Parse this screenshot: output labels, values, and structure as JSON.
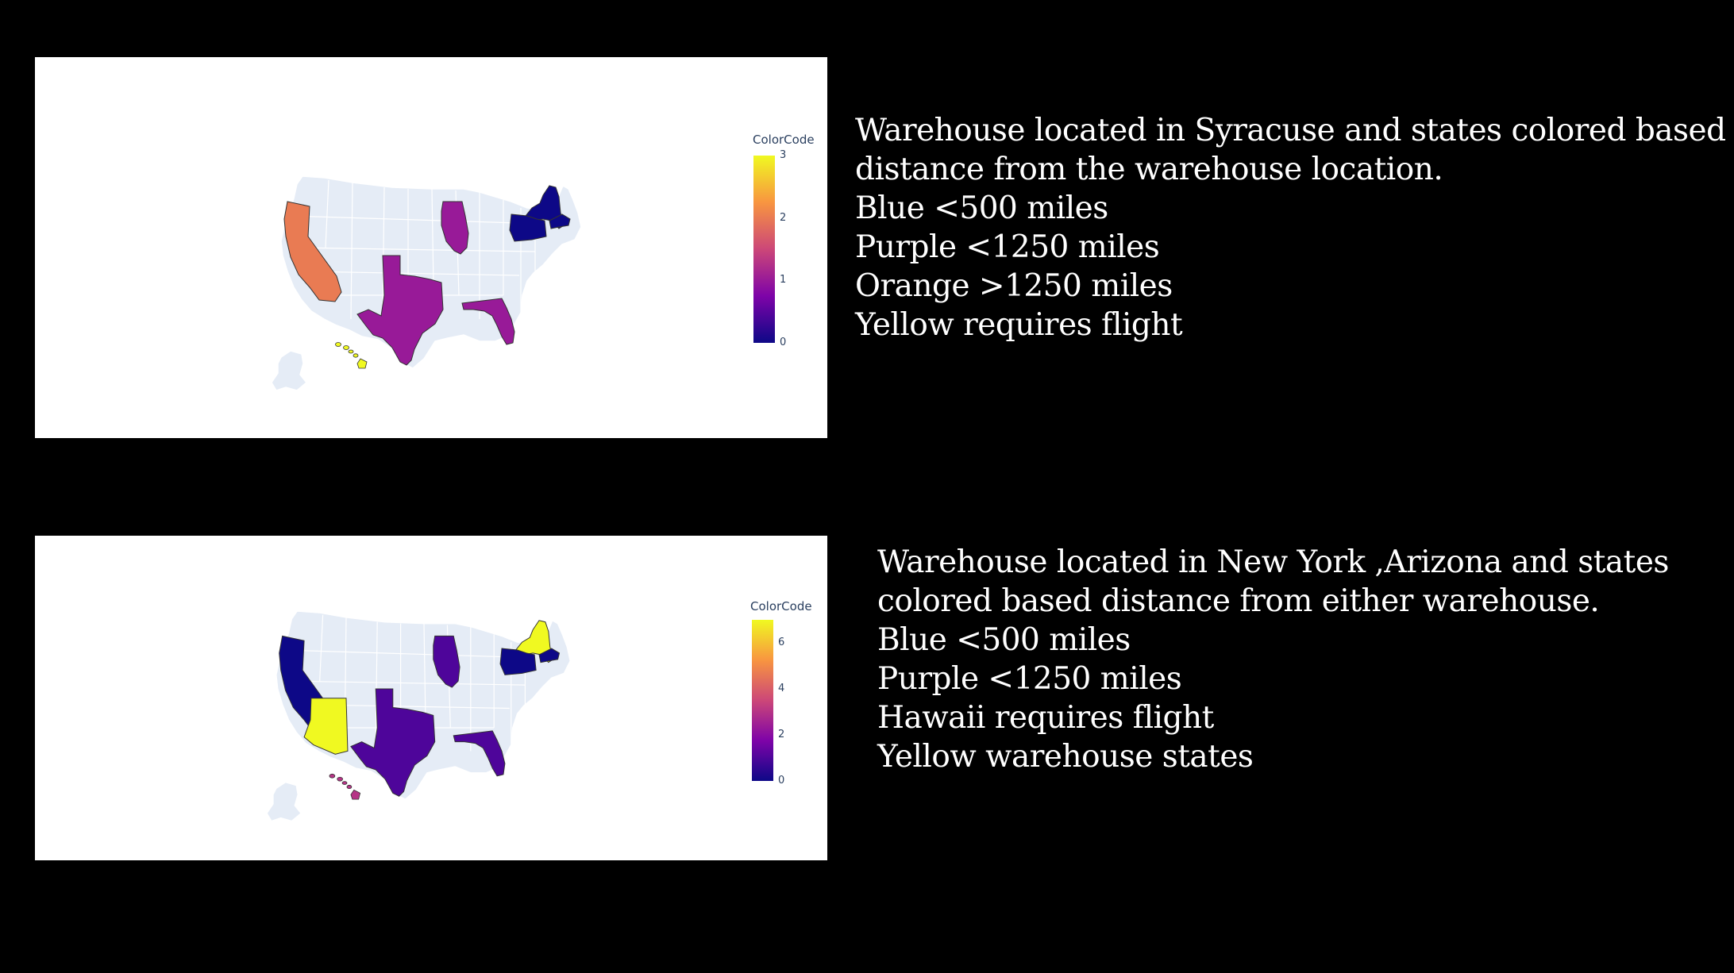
{
  "maps": [
    {
      "colorbar": {
        "title": "ColorCode",
        "ticks": [
          "0",
          "1",
          "2",
          "3"
        ],
        "range": [
          0,
          3
        ],
        "colorscale": [
          "#0d0887",
          "#7e03a8",
          "#cc4778",
          "#f89540",
          "#f0f921"
        ]
      },
      "state_values": [
        {
          "state": "California",
          "value": 2
        },
        {
          "state": "Texas",
          "value": 1
        },
        {
          "state": "Illinois",
          "value": 1
        },
        {
          "state": "Florida",
          "value": 1
        },
        {
          "state": "New York",
          "value": 0
        },
        {
          "state": "Pennsylvania",
          "value": 0
        },
        {
          "state": "Massachusetts",
          "value": 0
        },
        {
          "state": "Hawaii",
          "value": 3
        }
      ],
      "description": [
        "Warehouse located in Syracuse and states colored based",
        "distance from the warehouse location.",
        "Blue <500 miles",
        "Purple <1250 miles",
        "Orange >1250 miles",
        "Yellow requires flight"
      ]
    },
    {
      "colorbar": {
        "title": "ColorCode",
        "ticks": [
          "0",
          "2",
          "4",
          "6"
        ],
        "range": [
          0,
          7
        ],
        "colorscale": [
          "#0d0887",
          "#7e03a8",
          "#cc4778",
          "#f89540",
          "#f0f921"
        ]
      },
      "state_values": [
        {
          "state": "California",
          "value": 0
        },
        {
          "state": "Arizona",
          "value": 7
        },
        {
          "state": "Texas",
          "value": 1
        },
        {
          "state": "Illinois",
          "value": 1
        },
        {
          "state": "Florida",
          "value": 1
        },
        {
          "state": "New York",
          "value": 7
        },
        {
          "state": "Pennsylvania",
          "value": 0
        },
        {
          "state": "Massachusetts",
          "value": 0
        },
        {
          "state": "Hawaii",
          "value": 3
        }
      ],
      "description": [
        "Warehouse located in New York ,Arizona and states",
        "colored based distance from either warehouse.",
        "Blue <500 miles",
        "Purple <1250 miles",
        "Hawaii requires flight",
        "Yellow warehouse states"
      ]
    }
  ]
}
